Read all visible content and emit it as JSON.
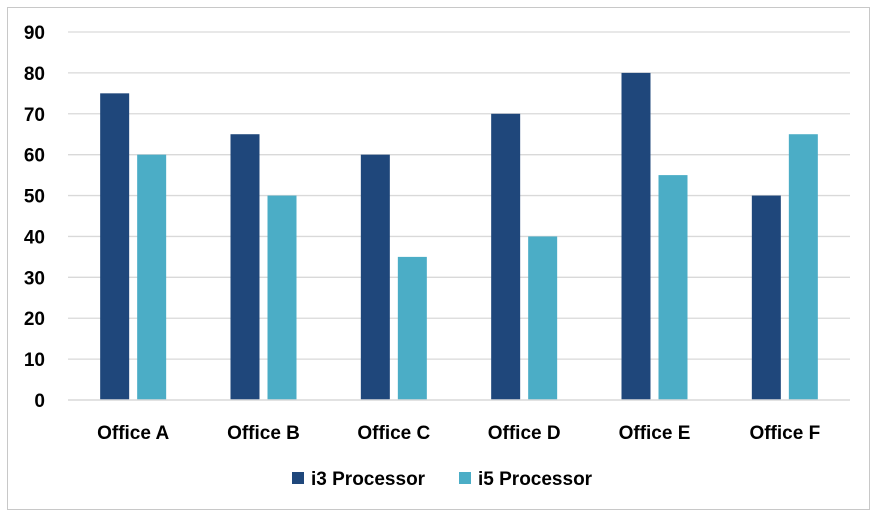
{
  "chart_data": {
    "type": "bar",
    "categories": [
      "Office A",
      "Office B",
      "Office C",
      "Office D",
      "Office E",
      "Office F"
    ],
    "series": [
      {
        "name": "i3 Processor",
        "color": "#1f477b",
        "values": [
          75,
          65,
          60,
          70,
          80,
          50
        ]
      },
      {
        "name": "i5 Processor",
        "color": "#4badc6",
        "values": [
          60,
          50,
          35,
          40,
          55,
          65
        ]
      }
    ],
    "y_ticks": [
      "0",
      "10",
      "20",
      "30",
      "40",
      "50",
      "60",
      "70",
      "80",
      "90"
    ],
    "ylim": [
      0,
      90
    ],
    "grid": true,
    "gridline_color": "#d9d9d9",
    "legend_position": "bottom"
  }
}
